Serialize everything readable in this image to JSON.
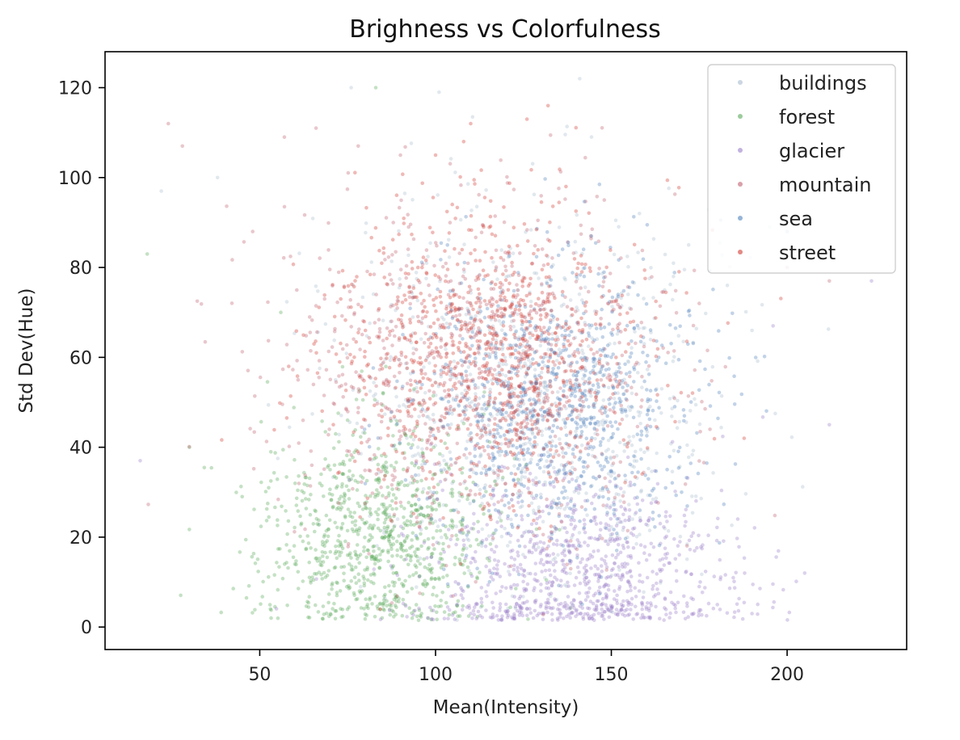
{
  "chart_data": {
    "type": "scatter",
    "title": "Brighness vs Colorfulness",
    "xlabel": "Mean(Intensity)",
    "ylabel": "Std Dev(Hue)",
    "xlim": [
      6,
      234
    ],
    "ylim": [
      -5,
      128
    ],
    "xticks": [
      50,
      100,
      150,
      200
    ],
    "yticks": [
      0,
      20,
      40,
      60,
      80,
      100,
      120
    ],
    "grid": false,
    "legend_position": "top-right",
    "marker_alpha": 0.35,
    "series": [
      {
        "name": "buildings",
        "color": "#a8bccf",
        "cluster": {
          "x_mean": 128,
          "x_sd": 26,
          "y_mean": 50,
          "y_sd": 21
        },
        "points": [
          [
            76,
            120
          ],
          [
            141,
            122
          ],
          [
            101,
            119
          ],
          [
            38,
            100
          ],
          [
            22,
            97
          ],
          [
            203,
            82
          ],
          [
            183,
            76
          ],
          [
            158,
            92
          ],
          [
            172,
            85
          ],
          [
            190,
            66
          ],
          [
            110,
            72
          ],
          [
            95,
            40
          ]
        ]
      },
      {
        "name": "forest",
        "color": "#5aa85a",
        "cluster": {
          "x_mean": 82,
          "x_sd": 17,
          "y_mean": 20,
          "y_sd": 13
        },
        "points": [
          [
            83,
            120
          ],
          [
            18,
            83
          ],
          [
            45,
            29
          ],
          [
            60,
            14
          ],
          [
            75,
            16
          ],
          [
            88,
            12
          ],
          [
            96,
            18
          ],
          [
            70,
            35
          ],
          [
            56,
            70
          ],
          [
            30,
            40
          ]
        ]
      },
      {
        "name": "glacier",
        "color": "#9a7fc9",
        "cluster": {
          "x_mean": 140,
          "x_sd": 22,
          "y_mean": 12,
          "y_sd": 11
        },
        "points": [
          [
            110,
            3
          ],
          [
            130,
            5
          ],
          [
            145,
            7
          ],
          [
            160,
            4
          ],
          [
            175,
            9
          ],
          [
            190,
            3
          ],
          [
            205,
            12
          ],
          [
            212,
            45
          ],
          [
            196,
            67
          ],
          [
            224,
            77
          ],
          [
            16,
            37
          ]
        ]
      },
      {
        "name": "mountain",
        "color": "#c06070",
        "cluster": {
          "x_mean": 112,
          "x_sd": 28,
          "y_mean": 57,
          "y_sd": 18
        },
        "points": [
          [
            24,
            112
          ],
          [
            28,
            107
          ],
          [
            48,
            88
          ],
          [
            57,
            109
          ],
          [
            66,
            111
          ],
          [
            78,
            107
          ],
          [
            90,
            105
          ],
          [
            212,
            77
          ],
          [
            200,
            80
          ],
          [
            175,
            72
          ],
          [
            148,
            95
          ]
        ]
      },
      {
        "name": "sea",
        "color": "#4f82bd",
        "cluster": {
          "x_mean": 134,
          "x_sd": 20,
          "y_mean": 50,
          "y_sd": 15
        },
        "points": [
          [
            131,
            52
          ],
          [
            140,
            55
          ],
          [
            125,
            48
          ],
          [
            150,
            60
          ],
          [
            160,
            44
          ],
          [
            120,
            65
          ],
          [
            145,
            40
          ],
          [
            200,
            88
          ],
          [
            170,
            30
          ]
        ]
      },
      {
        "name": "street",
        "color": "#d03a32",
        "cluster": {
          "x_mean": 115,
          "x_sd": 22,
          "y_mean": 61,
          "y_sd": 16
        },
        "points": [
          [
            132,
            116
          ],
          [
            126,
            113
          ],
          [
            110,
            112
          ],
          [
            108,
            108
          ],
          [
            100,
            105
          ],
          [
            120,
            64
          ],
          [
            112,
            70
          ],
          [
            125,
            58
          ],
          [
            105,
            75
          ],
          [
            130,
            60
          ],
          [
            118,
            55
          ],
          [
            95,
            80
          ]
        ]
      }
    ]
  }
}
